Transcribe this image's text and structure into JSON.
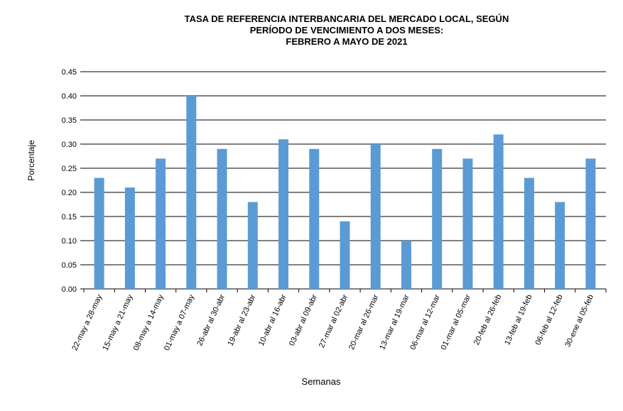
{
  "chart_data": {
    "type": "bar",
    "title": [
      "TASA  DE REFERENCIA INTERBANCARIA DEL MERCADO LOCAL, SEGÚN",
      "PERÍODO DE VENCIMIENTO A DOS MESES:",
      "FEBRERO A MAYO DE 2021"
    ],
    "x_label": "Semanas",
    "y_label": "Porcentaje",
    "categories": [
      "22-may a 28-may",
      "15-may a 21-may",
      "08-may a 14-may",
      "01-may a 07-may",
      "26-abr al 30-abr",
      "19-abr al 23-abr",
      "10-abr al 16-abr",
      "03-abr al 09-abr",
      "27-mar al 02-abr",
      "20-mar al 26-mar",
      "13-mar al 19-mar",
      "06-mar al 12-mar",
      "01-mar al 05-mar",
      "20-feb al 26-feb",
      "13-feb al 19-feb",
      "06-feb al 12-feb",
      "30-ene al 05-feb"
    ],
    "values": [
      0.23,
      0.21,
      0.27,
      0.4,
      0.29,
      0.18,
      0.31,
      0.29,
      0.14,
      0.3,
      0.1,
      0.29,
      0.27,
      0.32,
      0.23,
      0.18,
      0.27
    ],
    "color": "#5b9bd5",
    "ylim": [
      0,
      0.45
    ],
    "yticks": [
      {
        "value": 0,
        "label": "0.00"
      },
      {
        "value": 0.05,
        "label": "0.05"
      },
      {
        "value": 0.1,
        "label": "0.10"
      },
      {
        "value": 0.15,
        "label": "0.15"
      },
      {
        "value": 0.2,
        "label": "0.20"
      },
      {
        "value": 0.25,
        "label": "0.25"
      },
      {
        "value": 0.3,
        "label": "0.30"
      },
      {
        "value": 0.35,
        "label": "0.35"
      },
      {
        "value": 0.4,
        "label": "0.40"
      },
      {
        "value": 0.45,
        "label": "0.45"
      }
    ],
    "grid": true
  }
}
